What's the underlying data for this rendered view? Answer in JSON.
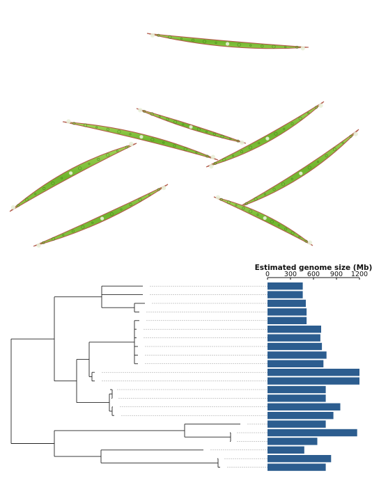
{
  "colors": {
    "bar": "#2c5d8f",
    "tree": "#222222",
    "cell_green": "#7cbf36",
    "cell_outline": "#b25a4a"
  },
  "chart_data": {
    "type": "bar",
    "orientation": "horizontal",
    "xlabel": "Estimated genome size (Mb)",
    "xlim": [
      0,
      1200
    ],
    "xticks": [
      0,
      300,
      600,
      900,
      1200
    ],
    "grid": false,
    "values": [
      460,
      460,
      500,
      510,
      510,
      700,
      690,
      710,
      770,
      730,
      1200,
      1200,
      760,
      760,
      950,
      860,
      760,
      1170,
      650,
      480,
      830,
      760
    ]
  }
}
